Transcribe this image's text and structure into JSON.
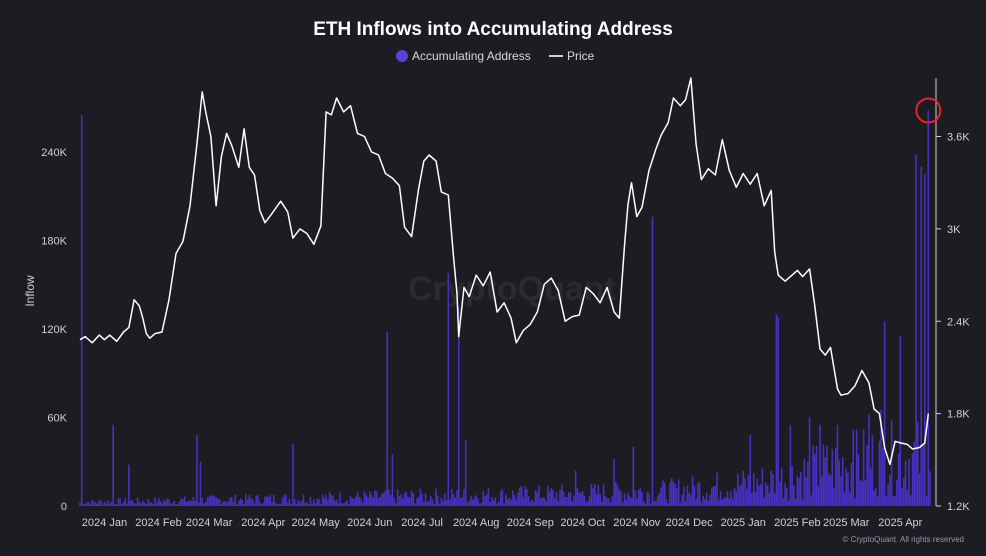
{
  "chart_data": {
    "type": "bar+line",
    "title": "ETH Inflows into Accumulating Address",
    "legend": [
      {
        "name": "Accumulating Address",
        "marker": "circle",
        "color": "#5b3fd6"
      },
      {
        "name": "Price",
        "marker": "line",
        "color": "#ffffff"
      }
    ],
    "legend_position": "top-center",
    "ylabel_left": "Inflow",
    "ylim_left": [
      0,
      290000
    ],
    "ylim_right": [
      1200,
      3980
    ],
    "y_ticks_left": [
      "0",
      "60K",
      "120K",
      "180K",
      "240K"
    ],
    "y_tick_values_left": [
      0,
      60000,
      120000,
      180000,
      240000
    ],
    "y_ticks_right": [
      "1.2K",
      "1.8K",
      "2.4K",
      "3K",
      "3.6K"
    ],
    "y_tick_values_right": [
      1200,
      1800,
      2400,
      3000,
      3600
    ],
    "x_tick_labels": [
      "2024 Jan",
      "2024 Feb",
      "2024 Mar",
      "2024 Apr",
      "2024 May",
      "2024 Jun",
      "2024 Jul",
      "2024 Aug",
      "2024 Sep",
      "2024 Oct",
      "2024 Nov",
      "2024 Dec",
      "2025 Jan",
      "2025 Feb",
      "2025 Mar",
      "2025 Apr"
    ],
    "x_days_range": [
      0,
      487
    ],
    "grid": false,
    "series": [
      {
        "name": "Accumulating Address",
        "type": "bar",
        "color": "#4a2fc4",
        "spikes": [
          {
            "date": "2024-01-02",
            "value": 265000
          },
          {
            "date": "2024-01-20",
            "value": 55000
          },
          {
            "date": "2024-01-29",
            "value": 28000
          },
          {
            "date": "2024-03-08",
            "value": 48000
          },
          {
            "date": "2024-03-10",
            "value": 30000
          },
          {
            "date": "2024-05-02",
            "value": 42000
          },
          {
            "date": "2024-06-25",
            "value": 118000
          },
          {
            "date": "2024-06-28",
            "value": 35000
          },
          {
            "date": "2024-07-30",
            "value": 158000
          },
          {
            "date": "2024-08-05",
            "value": 135000
          },
          {
            "date": "2024-08-09",
            "value": 45000
          },
          {
            "date": "2024-10-11",
            "value": 24000
          },
          {
            "date": "2024-11-02",
            "value": 32000
          },
          {
            "date": "2024-11-13",
            "value": 40000
          },
          {
            "date": "2024-11-24",
            "value": 196000
          },
          {
            "date": "2025-01-19",
            "value": 48000
          },
          {
            "date": "2025-02-03",
            "value": 130000
          },
          {
            "date": "2025-02-04",
            "value": 128000
          },
          {
            "date": "2025-02-11",
            "value": 55000
          },
          {
            "date": "2025-02-22",
            "value": 60000
          },
          {
            "date": "2025-02-28",
            "value": 55000
          },
          {
            "date": "2025-03-10",
            "value": 55000
          },
          {
            "date": "2025-03-19",
            "value": 52000
          },
          {
            "date": "2025-03-28",
            "value": 62000
          },
          {
            "date": "2025-04-04",
            "value": 65000
          },
          {
            "date": "2025-04-06",
            "value": 125000
          },
          {
            "date": "2025-04-15",
            "value": 115000
          },
          {
            "date": "2025-04-24",
            "value": 238000
          },
          {
            "date": "2025-04-27",
            "value": 230000
          },
          {
            "date": "2025-04-29",
            "value": 225000
          },
          {
            "date": "2025-05-01",
            "value": 268000
          }
        ],
        "baseline_trend": [
          {
            "date": "2024-01-01",
            "value": 3000
          },
          {
            "date": "2024-06-01",
            "value": 7000
          },
          {
            "date": "2024-09-01",
            "value": 9000
          },
          {
            "date": "2024-12-01",
            "value": 12000
          },
          {
            "date": "2025-02-01",
            "value": 20000
          },
          {
            "date": "2025-03-01",
            "value": 30000
          },
          {
            "date": "2025-04-01",
            "value": 38000
          },
          {
            "date": "2025-05-01",
            "value": 40000
          }
        ]
      },
      {
        "name": "Price",
        "type": "line",
        "color": "#ffffff",
        "points": [
          [
            "2024-01-01",
            2280
          ],
          [
            "2024-01-04",
            2300
          ],
          [
            "2024-01-08",
            2260
          ],
          [
            "2024-01-12",
            2310
          ],
          [
            "2024-01-15",
            2280
          ],
          [
            "2024-01-18",
            2310
          ],
          [
            "2024-01-22",
            2270
          ],
          [
            "2024-01-26",
            2330
          ],
          [
            "2024-01-29",
            2360
          ],
          [
            "2024-02-01",
            2540
          ],
          [
            "2024-02-04",
            2500
          ],
          [
            "2024-02-06",
            2420
          ],
          [
            "2024-02-08",
            2320
          ],
          [
            "2024-02-10",
            2290
          ],
          [
            "2024-02-13",
            2320
          ],
          [
            "2024-02-17",
            2330
          ],
          [
            "2024-02-21",
            2540
          ],
          [
            "2024-02-25",
            2840
          ],
          [
            "2024-02-29",
            2920
          ],
          [
            "2024-03-04",
            3150
          ],
          [
            "2024-03-08",
            3550
          ],
          [
            "2024-03-11",
            3890
          ],
          [
            "2024-03-13",
            3760
          ],
          [
            "2024-03-16",
            3600
          ],
          [
            "2024-03-19",
            3150
          ],
          [
            "2024-03-22",
            3470
          ],
          [
            "2024-03-25",
            3620
          ],
          [
            "2024-03-28",
            3540
          ],
          [
            "2024-04-01",
            3400
          ],
          [
            "2024-04-04",
            3650
          ],
          [
            "2024-04-07",
            3400
          ],
          [
            "2024-04-10",
            3350
          ],
          [
            "2024-04-13",
            3120
          ],
          [
            "2024-04-16",
            3040
          ],
          [
            "2024-04-20",
            3100
          ],
          [
            "2024-04-25",
            3180
          ],
          [
            "2024-04-29",
            3110
          ],
          [
            "2024-05-02",
            2940
          ],
          [
            "2024-05-06",
            3000
          ],
          [
            "2024-05-10",
            2970
          ],
          [
            "2024-05-14",
            2900
          ],
          [
            "2024-05-18",
            3020
          ],
          [
            "2024-05-21",
            3760
          ],
          [
            "2024-05-24",
            3740
          ],
          [
            "2024-05-27",
            3850
          ],
          [
            "2024-05-31",
            3760
          ],
          [
            "2024-06-04",
            3800
          ],
          [
            "2024-06-08",
            3620
          ],
          [
            "2024-06-12",
            3600
          ],
          [
            "2024-06-16",
            3500
          ],
          [
            "2024-06-20",
            3480
          ],
          [
            "2024-06-24",
            3360
          ],
          [
            "2024-06-28",
            3330
          ],
          [
            "2024-07-02",
            3280
          ],
          [
            "2024-07-05",
            3010
          ],
          [
            "2024-07-09",
            2950
          ],
          [
            "2024-07-13",
            3260
          ],
          [
            "2024-07-16",
            3440
          ],
          [
            "2024-07-19",
            3480
          ],
          [
            "2024-07-23",
            3440
          ],
          [
            "2024-07-26",
            3240
          ],
          [
            "2024-07-30",
            3220
          ],
          [
            "2024-08-02",
            2820
          ],
          [
            "2024-08-04",
            2580
          ],
          [
            "2024-08-05",
            2300
          ],
          [
            "2024-08-08",
            2620
          ],
          [
            "2024-08-11",
            2560
          ],
          [
            "2024-08-15",
            2700
          ],
          [
            "2024-08-19",
            2630
          ],
          [
            "2024-08-23",
            2720
          ],
          [
            "2024-08-27",
            2460
          ],
          [
            "2024-08-31",
            2520
          ],
          [
            "2024-09-04",
            2420
          ],
          [
            "2024-09-07",
            2260
          ],
          [
            "2024-09-11",
            2340
          ],
          [
            "2024-09-15",
            2380
          ],
          [
            "2024-09-19",
            2460
          ],
          [
            "2024-09-23",
            2640
          ],
          [
            "2024-09-27",
            2680
          ],
          [
            "2024-10-01",
            2600
          ],
          [
            "2024-10-05",
            2400
          ],
          [
            "2024-10-09",
            2430
          ],
          [
            "2024-10-13",
            2440
          ],
          [
            "2024-10-17",
            2620
          ],
          [
            "2024-10-21",
            2580
          ],
          [
            "2024-10-25",
            2520
          ],
          [
            "2024-10-29",
            2620
          ],
          [
            "2024-11-02",
            2460
          ],
          [
            "2024-11-05",
            2420
          ],
          [
            "2024-11-08",
            2900
          ],
          [
            "2024-11-10",
            3160
          ],
          [
            "2024-11-12",
            3300
          ],
          [
            "2024-11-15",
            3080
          ],
          [
            "2024-11-18",
            3140
          ],
          [
            "2024-11-22",
            3380
          ],
          [
            "2024-11-26",
            3520
          ],
          [
            "2024-11-29",
            3610
          ],
          [
            "2024-12-03",
            3690
          ],
          [
            "2024-12-06",
            3850
          ],
          [
            "2024-12-10",
            3800
          ],
          [
            "2024-12-13",
            3840
          ],
          [
            "2024-12-16",
            3980
          ],
          [
            "2024-12-19",
            3550
          ],
          [
            "2024-12-22",
            3320
          ],
          [
            "2024-12-26",
            3390
          ],
          [
            "2024-12-30",
            3350
          ],
          [
            "2025-01-03",
            3580
          ],
          [
            "2025-01-07",
            3380
          ],
          [
            "2025-01-11",
            3270
          ],
          [
            "2025-01-15",
            3360
          ],
          [
            "2025-01-19",
            3290
          ],
          [
            "2025-01-23",
            3360
          ],
          [
            "2025-01-27",
            3150
          ],
          [
            "2025-01-31",
            3250
          ],
          [
            "2025-02-02",
            2850
          ],
          [
            "2025-02-04",
            2700
          ],
          [
            "2025-02-08",
            2660
          ],
          [
            "2025-02-12",
            2700
          ],
          [
            "2025-02-15",
            2730
          ],
          [
            "2025-02-18",
            2690
          ],
          [
            "2025-02-22",
            2740
          ],
          [
            "2025-02-25",
            2500
          ],
          [
            "2025-02-28",
            2220
          ],
          [
            "2025-03-03",
            2180
          ],
          [
            "2025-03-06",
            2230
          ],
          [
            "2025-03-10",
            1960
          ],
          [
            "2025-03-12",
            1920
          ],
          [
            "2025-03-16",
            1930
          ],
          [
            "2025-03-20",
            1980
          ],
          [
            "2025-03-24",
            2080
          ],
          [
            "2025-03-28",
            2000
          ],
          [
            "2025-03-31",
            1830
          ],
          [
            "2025-04-03",
            1800
          ],
          [
            "2025-04-06",
            1580
          ],
          [
            "2025-04-09",
            1470
          ],
          [
            "2025-04-12",
            1620
          ],
          [
            "2025-04-15",
            1610
          ],
          [
            "2025-04-19",
            1600
          ],
          [
            "2025-04-22",
            1570
          ],
          [
            "2025-04-26",
            1580
          ],
          [
            "2025-04-29",
            1610
          ],
          [
            "2025-05-01",
            1800
          ]
        ]
      }
    ],
    "annotation": {
      "type": "circle",
      "color": "#e0262c",
      "marks": "latest Accumulating Address spike",
      "date": "2025-05-01",
      "value": 268000
    },
    "watermark": "CryptoQuant",
    "credit": "© CryptoQuant. All rights reserved"
  }
}
